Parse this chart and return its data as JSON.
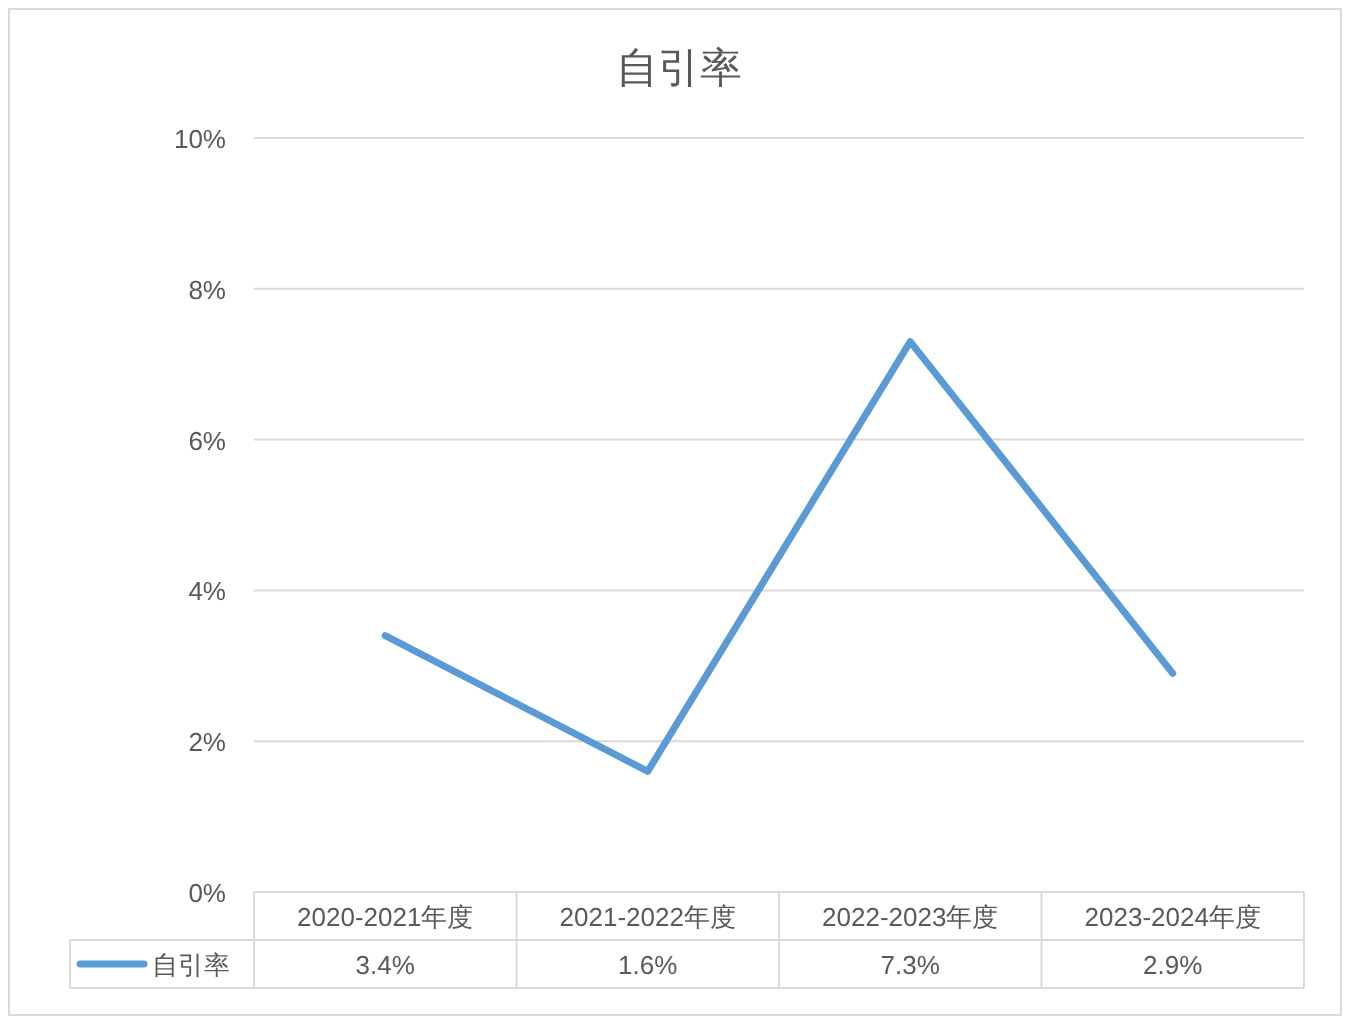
{
  "chart_data": {
    "type": "line",
    "title": "自引率",
    "categories": [
      "2020-2021年度",
      "2021-2022年度",
      "2022-2023年度",
      "2023-2024年度"
    ],
    "series": [
      {
        "name": "自引率",
        "color": "#5b9bd5",
        "values": [
          3.4,
          1.6,
          7.3,
          2.9
        ],
        "value_labels": [
          "3.4%",
          "1.6%",
          "7.3%",
          "2.9%"
        ]
      }
    ],
    "ylim": [
      0,
      10
    ],
    "yticks": [
      {
        "value": 0,
        "label": "0%"
      },
      {
        "value": 2,
        "label": "2%"
      },
      {
        "value": 4,
        "label": "4%"
      },
      {
        "value": 6,
        "label": "6%"
      },
      {
        "value": 8,
        "label": "8%"
      },
      {
        "value": 10,
        "label": "10%"
      }
    ],
    "grid": "y",
    "legend": "bottom",
    "marker": "none",
    "line_style": "solid"
  }
}
